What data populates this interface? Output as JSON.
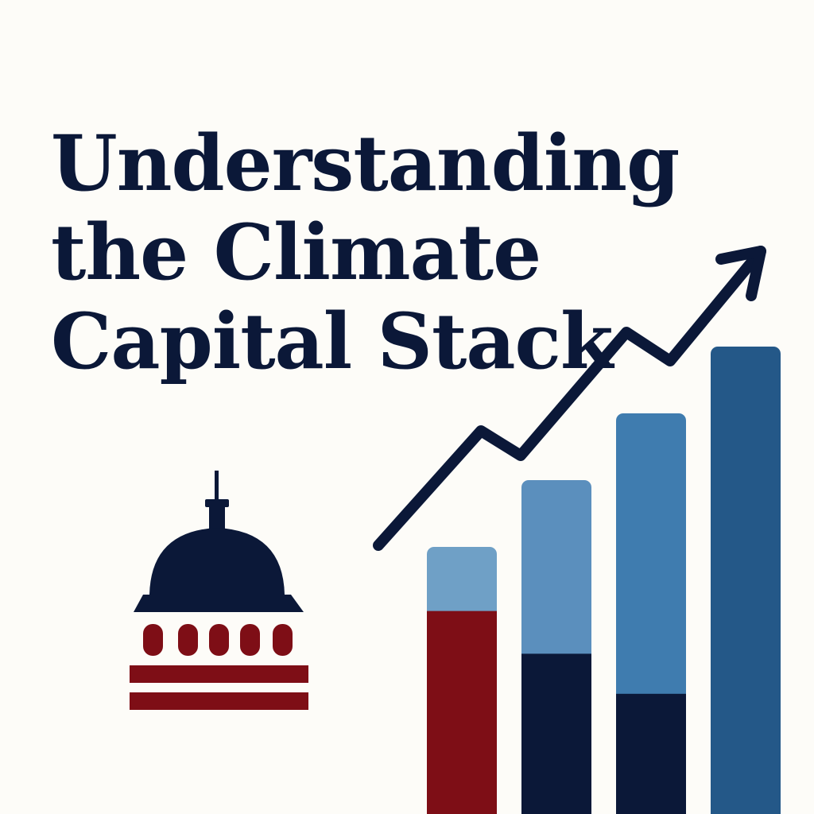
{
  "title_lines": [
    "Understanding",
    "the Climate",
    "Capital Stack"
  ],
  "colors": {
    "background": "#fdfcf8",
    "navy": "#0b1838",
    "crimson": "#7e0e16",
    "blue_light": "#6fa0c6",
    "blue_mid": "#5b8fbd",
    "blue_bright": "#3f7caf",
    "blue_dark": "#245888"
  },
  "icons": [
    "capitol-dome-icon",
    "trend-arrow-icon"
  ],
  "illustration": {
    "type": "stacked-bar-illustration",
    "bars": [
      {
        "segments": [
          "crimson",
          "blue_light"
        ],
        "relative_height": 0.4,
        "split": 0.76
      },
      {
        "segments": [
          "navy",
          "blue_mid"
        ],
        "relative_height": 0.5,
        "split": 0.48
      },
      {
        "segments": [
          "navy",
          "blue_bright"
        ],
        "relative_height": 0.6,
        "split": 0.3
      },
      {
        "segments": [
          "blue_dark"
        ],
        "relative_height": 0.7,
        "split": 1
      }
    ]
  }
}
